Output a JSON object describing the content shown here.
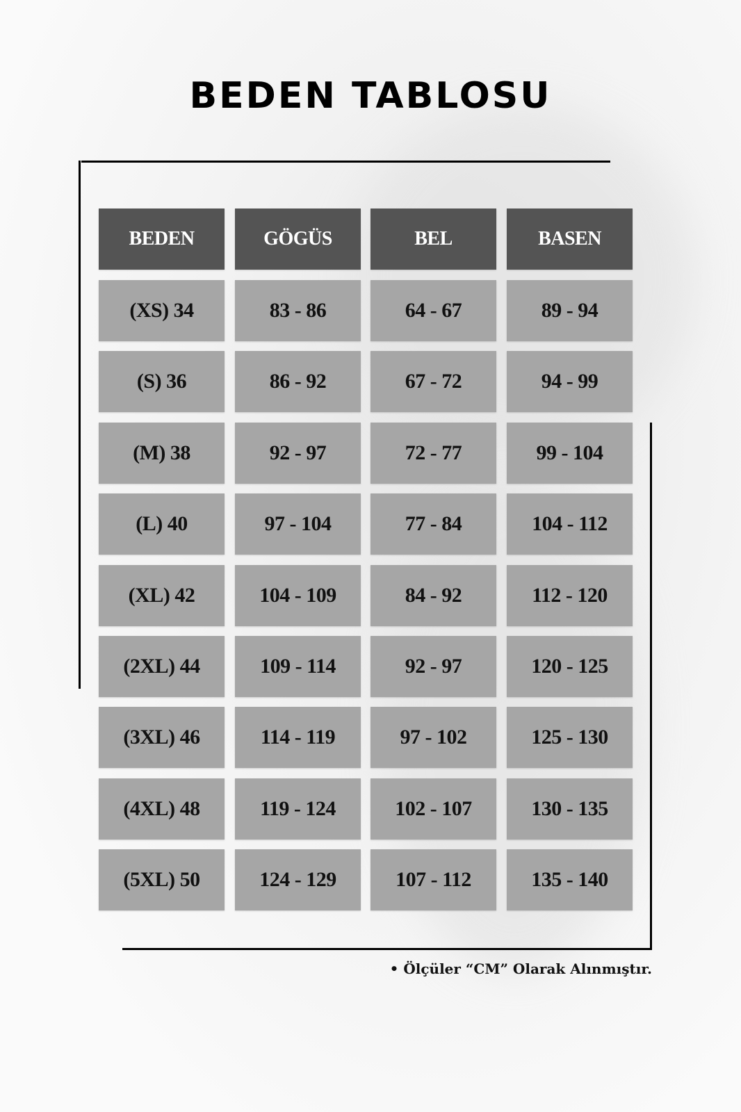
{
  "title": "BEDEN TABLOSU",
  "table": {
    "headers": [
      "BEDEN",
      "GÖGÜS",
      "BEL",
      "BASEN"
    ],
    "rows": [
      [
        "(XS) 34",
        "83 - 86",
        "64 - 67",
        "89 - 94"
      ],
      [
        "(S) 36",
        "86 - 92",
        "67 - 72",
        "94 - 99"
      ],
      [
        "(M) 38",
        "92 - 97",
        "72 - 77",
        "99 - 104"
      ],
      [
        "(L) 40",
        "97 - 104",
        "77 - 84",
        "104 - 112"
      ],
      [
        "(XL) 42",
        "104 - 109",
        "84 - 92",
        "112 - 120"
      ],
      [
        "(2XL) 44",
        "109 - 114",
        "92 - 97",
        "120 - 125"
      ],
      [
        "(3XL) 46",
        "114 - 119",
        "97 - 102",
        "125 - 130"
      ],
      [
        "(4XL) 48",
        "119 - 124",
        "102 - 107",
        "130 - 135"
      ],
      [
        "(5XL) 50",
        "124 - 129",
        "107 - 112",
        "135 - 140"
      ]
    ]
  },
  "note": "• Ölçüler “CM” Olarak Alınmıştır.",
  "colors": {
    "header_bg": "#545454",
    "cell_bg": "#a6a6a6",
    "header_text": "#ffffff",
    "cell_text": "#111111"
  }
}
